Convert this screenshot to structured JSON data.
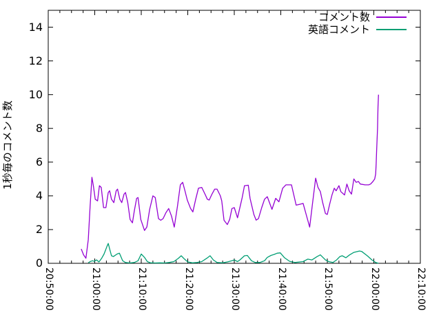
{
  "chart_data": {
    "type": "line",
    "title": "",
    "xlabel": "",
    "ylabel": "1秒毎のコメント数",
    "grid": false,
    "background": "#ffffff",
    "axis_color": "#000000",
    "x_axis": {
      "ticks": [
        "20:50:00",
        "21:00:00",
        "21:10:00",
        "21:20:00",
        "21:30:00",
        "21:40:00",
        "21:50:00",
        "22:00:00",
        "22:10:00"
      ],
      "tick_seconds": [
        0,
        600,
        1200,
        1800,
        2400,
        3000,
        3600,
        4200,
        4800
      ],
      "range_seconds": [
        0,
        4800
      ],
      "minor_divisions": 4,
      "tick_rotation_deg": 90
    },
    "y_axis": {
      "ticks": [
        0,
        2,
        4,
        6,
        8,
        10,
        12,
        14
      ],
      "range": [
        0,
        15
      ]
    },
    "legend": {
      "position": "top-right"
    },
    "series": [
      {
        "name": "コメント数",
        "color": "#9400d3",
        "points": [
          [
            426,
            0.85
          ],
          [
            456,
            0.5
          ],
          [
            486,
            0.3
          ],
          [
            516,
            1.4
          ],
          [
            540,
            3.4
          ],
          [
            564,
            5.1
          ],
          [
            582,
            4.6
          ],
          [
            606,
            3.8
          ],
          [
            636,
            3.7
          ],
          [
            660,
            4.6
          ],
          [
            684,
            4.5
          ],
          [
            714,
            3.3
          ],
          [
            744,
            3.3
          ],
          [
            774,
            4.2
          ],
          [
            792,
            4.3
          ],
          [
            816,
            3.8
          ],
          [
            846,
            3.6
          ],
          [
            876,
            4.3
          ],
          [
            894,
            4.4
          ],
          [
            924,
            3.8
          ],
          [
            948,
            3.6
          ],
          [
            978,
            4.1
          ],
          [
            996,
            4.2
          ],
          [
            1026,
            3.6
          ],
          [
            1056,
            2.6
          ],
          [
            1086,
            2.4
          ],
          [
            1110,
            3.1
          ],
          [
            1140,
            3.85
          ],
          [
            1158,
            3.9
          ],
          [
            1194,
            2.6
          ],
          [
            1242,
            1.95
          ],
          [
            1272,
            2.15
          ],
          [
            1308,
            3.2
          ],
          [
            1350,
            4.0
          ],
          [
            1380,
            3.9
          ],
          [
            1422,
            2.65
          ],
          [
            1452,
            2.55
          ],
          [
            1482,
            2.65
          ],
          [
            1518,
            3.0
          ],
          [
            1554,
            3.25
          ],
          [
            1590,
            2.8
          ],
          [
            1626,
            2.15
          ],
          [
            1668,
            3.4
          ],
          [
            1704,
            4.65
          ],
          [
            1734,
            4.8
          ],
          [
            1764,
            4.3
          ],
          [
            1794,
            3.75
          ],
          [
            1836,
            3.25
          ],
          [
            1866,
            3.05
          ],
          [
            1902,
            3.8
          ],
          [
            1938,
            4.45
          ],
          [
            1980,
            4.5
          ],
          [
            2028,
            4.05
          ],
          [
            2052,
            3.8
          ],
          [
            2076,
            3.75
          ],
          [
            2112,
            4.1
          ],
          [
            2148,
            4.4
          ],
          [
            2178,
            4.4
          ],
          [
            2220,
            4.0
          ],
          [
            2238,
            3.7
          ],
          [
            2268,
            2.55
          ],
          [
            2310,
            2.3
          ],
          [
            2340,
            2.6
          ],
          [
            2370,
            3.25
          ],
          [
            2400,
            3.3
          ],
          [
            2442,
            2.7
          ],
          [
            2502,
            3.9
          ],
          [
            2532,
            4.6
          ],
          [
            2580,
            4.63
          ],
          [
            2604,
            3.85
          ],
          [
            2652,
            2.9
          ],
          [
            2682,
            2.56
          ],
          [
            2712,
            2.65
          ],
          [
            2754,
            3.3
          ],
          [
            2790,
            3.8
          ],
          [
            2826,
            3.95
          ],
          [
            2886,
            3.2
          ],
          [
            2934,
            3.85
          ],
          [
            2976,
            3.65
          ],
          [
            3024,
            4.45
          ],
          [
            3066,
            4.65
          ],
          [
            3138,
            4.65
          ],
          [
            3198,
            3.45
          ],
          [
            3246,
            3.5
          ],
          [
            3288,
            3.55
          ],
          [
            3336,
            2.75
          ],
          [
            3372,
            2.15
          ],
          [
            3408,
            3.5
          ],
          [
            3450,
            5.05
          ],
          [
            3480,
            4.5
          ],
          [
            3510,
            4.25
          ],
          [
            3540,
            3.6
          ],
          [
            3576,
            2.95
          ],
          [
            3600,
            2.9
          ],
          [
            3630,
            3.5
          ],
          [
            3660,
            4.05
          ],
          [
            3690,
            4.45
          ],
          [
            3714,
            4.3
          ],
          [
            3750,
            4.6
          ],
          [
            3774,
            4.25
          ],
          [
            3822,
            4.05
          ],
          [
            3852,
            4.7
          ],
          [
            3882,
            4.3
          ],
          [
            3912,
            4.1
          ],
          [
            3942,
            5.0
          ],
          [
            3972,
            4.8
          ],
          [
            4002,
            4.85
          ],
          [
            4026,
            4.7
          ],
          [
            4086,
            4.65
          ],
          [
            4134,
            4.65
          ],
          [
            4158,
            4.7
          ],
          [
            4188,
            4.85
          ],
          [
            4212,
            5.0
          ],
          [
            4224,
            5.3
          ],
          [
            4230,
            5.9
          ],
          [
            4236,
            6.6
          ],
          [
            4242,
            7.3
          ],
          [
            4248,
            8.0
          ],
          [
            4251,
            8.6
          ],
          [
            4254,
            9.3
          ],
          [
            4260,
            10.0
          ]
        ]
      },
      {
        "name": "英語コメント",
        "color": "#009e73",
        "points": [
          [
            516,
            0.03
          ],
          [
            540,
            0.1
          ],
          [
            570,
            0.15
          ],
          [
            594,
            0.12
          ],
          [
            624,
            0.2
          ],
          [
            654,
            0.08
          ],
          [
            690,
            0.3
          ],
          [
            720,
            0.55
          ],
          [
            762,
            1.05
          ],
          [
            774,
            1.18
          ],
          [
            798,
            0.75
          ],
          [
            816,
            0.45
          ],
          [
            840,
            0.4
          ],
          [
            888,
            0.55
          ],
          [
            918,
            0.6
          ],
          [
            960,
            0.15
          ],
          [
            996,
            0.05
          ],
          [
            1050,
            0.02
          ],
          [
            1110,
            0.05
          ],
          [
            1158,
            0.15
          ],
          [
            1200,
            0.55
          ],
          [
            1242,
            0.35
          ],
          [
            1278,
            0.1
          ],
          [
            1320,
            0.03
          ],
          [
            1380,
            0.02
          ],
          [
            1440,
            0.03
          ],
          [
            1500,
            0.02
          ],
          [
            1560,
            0.05
          ],
          [
            1620,
            0.1
          ],
          [
            1680,
            0.3
          ],
          [
            1716,
            0.45
          ],
          [
            1758,
            0.25
          ],
          [
            1800,
            0.08
          ],
          [
            1860,
            0.03
          ],
          [
            1920,
            0.05
          ],
          [
            1980,
            0.1
          ],
          [
            2046,
            0.3
          ],
          [
            2088,
            0.45
          ],
          [
            2130,
            0.2
          ],
          [
            2178,
            0.05
          ],
          [
            2250,
            0.03
          ],
          [
            2310,
            0.08
          ],
          [
            2370,
            0.15
          ],
          [
            2400,
            0.2
          ],
          [
            2442,
            0.1
          ],
          [
            2472,
            0.2
          ],
          [
            2532,
            0.45
          ],
          [
            2568,
            0.47
          ],
          [
            2622,
            0.15
          ],
          [
            2670,
            0.05
          ],
          [
            2730,
            0.05
          ],
          [
            2790,
            0.15
          ],
          [
            2826,
            0.35
          ],
          [
            2874,
            0.47
          ],
          [
            2916,
            0.53
          ],
          [
            2952,
            0.6
          ],
          [
            2994,
            0.62
          ],
          [
            3048,
            0.33
          ],
          [
            3114,
            0.12
          ],
          [
            3180,
            0.05
          ],
          [
            3288,
            0.1
          ],
          [
            3348,
            0.25
          ],
          [
            3402,
            0.2
          ],
          [
            3468,
            0.4
          ],
          [
            3510,
            0.5
          ],
          [
            3576,
            0.2
          ],
          [
            3618,
            0.1
          ],
          [
            3672,
            0.05
          ],
          [
            3720,
            0.2
          ],
          [
            3762,
            0.4
          ],
          [
            3792,
            0.45
          ],
          [
            3840,
            0.33
          ],
          [
            3888,
            0.5
          ],
          [
            3942,
            0.65
          ],
          [
            4014,
            0.73
          ],
          [
            4044,
            0.7
          ],
          [
            4116,
            0.45
          ],
          [
            4176,
            0.2
          ],
          [
            4224,
            0.05
          ],
          [
            4260,
            0.0
          ]
        ]
      }
    ]
  }
}
